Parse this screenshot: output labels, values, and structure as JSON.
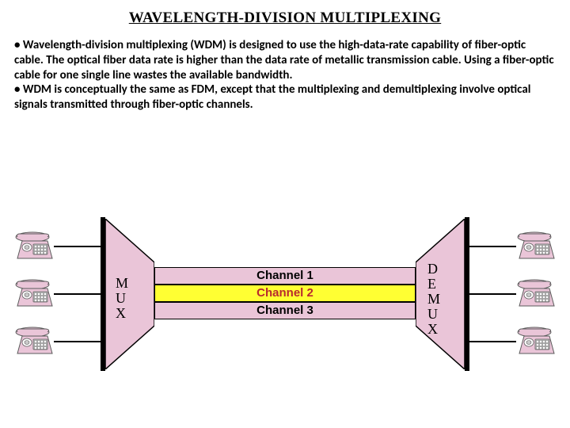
{
  "title": "WAVELENGTH-DIVISION MULTIPLEXING",
  "paragraph1": "• Wavelength-division multiplexing (WDM) is designed to use the high-data-rate capability of fiber-optic cable. The optical fiber data rate is higher than the data rate of metallic transmission cable. Using a fiber-optic cable for one single line wastes the available bandwidth.",
  "paragraph2": "• WDM is conceptually the same as FDM, except that the multiplexing and demultiplexing involve optical signals transmitted through fiber-optic channels.",
  "mux": {
    "letters": [
      "M",
      "U",
      "X"
    ]
  },
  "demux": {
    "letters": [
      "D",
      "E",
      "M",
      "U",
      "X"
    ]
  },
  "channels": [
    {
      "label": "Channel 1",
      "color": "#eac5d8",
      "text": "#000000"
    },
    {
      "label": "Channel 2",
      "color": "#ffff33",
      "text": "#b8292f"
    },
    {
      "label": "Channel 3",
      "color": "#eac5d8",
      "text": "#000000"
    }
  ],
  "phone_colors": {
    "body": "#eac5d8",
    "outline": "#5b5b5b",
    "keypad": "#c9c9c9"
  },
  "trapezoid_fill": "#eac5d8",
  "trapezoid_stroke": "#000000"
}
